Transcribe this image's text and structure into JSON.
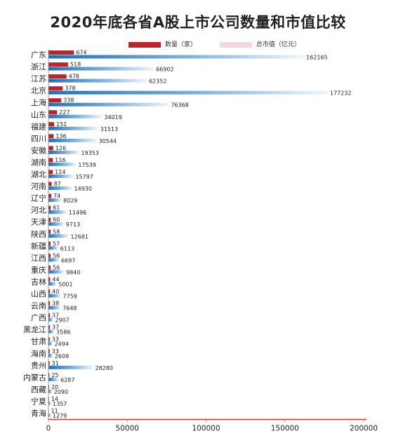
{
  "chart_data": {
    "type": "bar",
    "title": "2020年底各省A股上市公司数量和市值比较",
    "legend": [
      {
        "name": "数量（家）",
        "color": "#b8262b"
      },
      {
        "name": "总市值（亿元）",
        "color": "#f2d9dc"
      }
    ],
    "colors": {
      "count": "#b8262b",
      "cap": "#2f7fbf",
      "axis": "#c9373d"
    },
    "xlim": [
      0,
      200000
    ],
    "xticks": [
      "0",
      "50000",
      "100000",
      "150000",
      "200000"
    ],
    "xtick_values": [
      0,
      50000,
      100000,
      150000,
      200000
    ],
    "count_bar_scale": 24,
    "categories": [
      "广东",
      "浙江",
      "江苏",
      "北京",
      "上海",
      "山东",
      "福建",
      "四川",
      "安徽",
      "湖南",
      "湖北",
      "河南",
      "辽宁",
      "河北",
      "天津",
      "陕西",
      "新疆",
      "江西",
      "重庆",
      "吉林",
      "山西",
      "云南",
      "广西",
      "黑龙江",
      "甘肃",
      "海南",
      "贵州",
      "内蒙古",
      "西藏",
      "宁夏",
      "青海"
    ],
    "series": [
      {
        "name": "数量（家）",
        "values": [
          674,
          518,
          478,
          378,
          338,
          227,
          151,
          136,
          126,
          116,
          114,
          87,
          74,
          61,
          60,
          58,
          57,
          56,
          56,
          44,
          40,
          38,
          37,
          37,
          33,
          33,
          31,
          25,
          20,
          14,
          11
        ]
      },
      {
        "name": "总市值（亿元）",
        "values": [
          162165,
          66902,
          62352,
          177232,
          76368,
          34019,
          31513,
          30544,
          19353,
          17539,
          15797,
          14930,
          8029,
          11496,
          9713,
          12681,
          6113,
          6697,
          9840,
          5001,
          7759,
          7648,
          2907,
          3586,
          2494,
          2609,
          28280,
          6287,
          2090,
          1357,
          1279
        ]
      }
    ]
  }
}
